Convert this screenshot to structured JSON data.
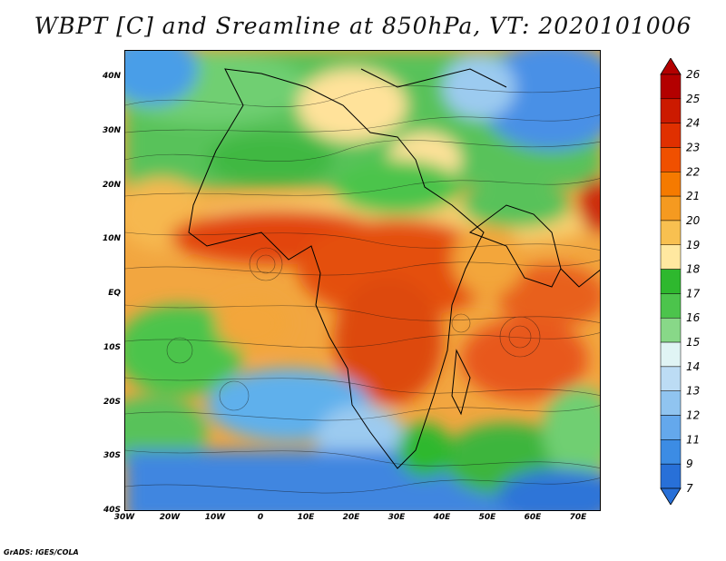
{
  "title": "WBPT [C] and Sreamline at 850hPa, VT: 2020101006",
  "credit": "GrADS: IGES/COLA",
  "map": {
    "lon_range": [
      -30,
      75
    ],
    "lat_range": [
      -40,
      45
    ],
    "lat_ticks": [
      "40N",
      "30N",
      "20N",
      "10N",
      "EQ",
      "10S",
      "20S",
      "30S",
      "40S"
    ],
    "lon_ticks": [
      "30W",
      "20W",
      "10W",
      "0",
      "10E",
      "20E",
      "30E",
      "40E",
      "50E",
      "60E",
      "70E"
    ]
  },
  "colorbar": {
    "levels": [
      "26",
      "25",
      "24",
      "23",
      "22",
      "21",
      "20",
      "19",
      "18",
      "17",
      "16",
      "15",
      "14",
      "13",
      "12",
      "11",
      "9",
      "7"
    ],
    "colors": [
      "#b30000",
      "#cc1a00",
      "#e03000",
      "#f05000",
      "#f57a00",
      "#f59a20",
      "#f8c050",
      "#ffe8a0",
      "#2eb82e",
      "#4cc44c",
      "#88d888",
      "#e0f4f4",
      "#bcdcf4",
      "#90c4f0",
      "#64a8ec",
      "#3c8ce4",
      "#2870d8"
    ]
  }
}
